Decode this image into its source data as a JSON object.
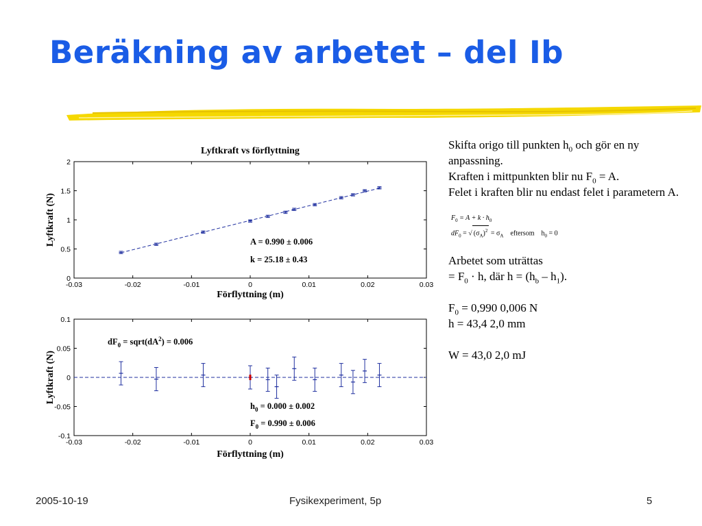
{
  "slide": {
    "title": "Beräkning av arbetet – del Ib",
    "accent_color": "#1a5ce6",
    "rule_color": "#f5d800"
  },
  "charts_text": {
    "top_title": "Lyftkraft vs förflyttning",
    "top_xlabel": "Förflyttning (m)",
    "top_ylabel": "Lyftkraft (N)",
    "top_ann_A": "A = 0.990 ± 0.006",
    "top_ann_k": "k = 25.18 ± 0.43",
    "bottom_xlabel": "Förflyttning (m)",
    "bottom_ylabel": "Lyftkraft (N)",
    "bottom_ann_dF_pre": "dF",
    "bottom_ann_dF_sub": "0",
    "bottom_ann_dF_mid": " = sqrt(dA",
    "bottom_ann_dF_sup": "2",
    "bottom_ann_dF_post": ") = 0.006",
    "bottom_ann_h_pre": "h",
    "bottom_ann_h_sub": "0",
    "bottom_ann_h_post": " = 0.000 ± 0.002",
    "bottom_ann_F_pre": "F",
    "bottom_ann_F_sub": "0",
    "bottom_ann_F_post": " = 0.990 ± 0.006"
  },
  "chart_data": [
    {
      "type": "scatter",
      "title": "Lyftkraft vs förflyttning",
      "xlabel": "Förflyttning (m)",
      "ylabel": "Lyftkraft (N)",
      "xlim": [
        -0.03,
        0.03
      ],
      "ylim": [
        0,
        2
      ],
      "xticks": [
        "-0.03",
        "-0.02",
        "-0.01",
        "0",
        "0.01",
        "0.02",
        "0.03"
      ],
      "yticks": [
        "0",
        "0.5",
        "1",
        "1.5",
        "2"
      ],
      "grid": false,
      "series": [
        {
          "x": [
            -0.022,
            -0.016,
            -0.008,
            0.0,
            0.003,
            0.006,
            0.0075,
            0.011,
            0.0155,
            0.0175,
            0.0195,
            0.022
          ],
          "y": [
            0.44,
            0.58,
            0.79,
            0.98,
            1.06,
            1.13,
            1.18,
            1.26,
            1.38,
            1.43,
            1.5,
            1.55
          ],
          "yerr": 0.02,
          "color": "#1f2f9f"
        }
      ],
      "fit_line": {
        "x": [
          -0.022,
          0.022
        ],
        "y": [
          0.436,
          1.544
        ],
        "style": "dashed",
        "color": "#1f2f9f"
      },
      "annotations": [
        "A = 0.990 ± 0.006",
        "k = 25.18 ± 0.43"
      ]
    },
    {
      "type": "scatter",
      "xlabel": "Förflyttning (m)",
      "ylabel": "Lyftkraft (N)",
      "xlim": [
        -0.03,
        0.03
      ],
      "ylim": [
        -0.1,
        0.1
      ],
      "xticks": [
        "-0.03",
        "-0.02",
        "-0.01",
        "0",
        "0.01",
        "0.02",
        "0.03"
      ],
      "yticks": [
        "-0.1",
        "-0.05",
        "0",
        "0.05",
        "0.1"
      ],
      "grid": false,
      "series": [
        {
          "x": [
            -0.022,
            -0.016,
            -0.008,
            0.0,
            0.003,
            0.0045,
            0.0075,
            0.011,
            0.0155,
            0.0175,
            0.0195,
            0.022
          ],
          "y": [
            0.007,
            -0.003,
            0.004,
            0.0,
            -0.004,
            -0.016,
            0.015,
            -0.004,
            0.004,
            -0.008,
            0.011,
            0.004
          ],
          "yerr": 0.02,
          "color": "#1f2f9f"
        }
      ],
      "highlight_point": {
        "x": 0.0,
        "y": 0.0,
        "color": "#cc0000"
      },
      "zero_line": {
        "y": 0,
        "style": "dashed",
        "color": "#1f2f9f"
      },
      "annotations": [
        "dF0 = sqrt(dA2) = 0.006",
        "h0 = 0.000 ± 0.002",
        "F0 = 0.990 ± 0.006"
      ]
    }
  ],
  "text_panel": {
    "p1_a": "Skifta origo till punkten h",
    "p1_sub": "0",
    "p1_b": " och gör en ny anpassning.",
    "p2_a": "Kraften i mittpunkten blir nu F",
    "p2_sub": "0",
    "p2_b": " = A.",
    "p3": "Felet i kraften blir nu endast felet i parametern A.",
    "f1_F": "F",
    "f1_sub": "0",
    "f1_rest": " = A + k · h",
    "f1_sub2": "0",
    "f2_dF": "dF",
    "f2_sub": "0",
    "f2_eq": " = ",
    "f2_sqrt": "(σ",
    "f2_sqrt_sub": "A",
    "f2_sqrt_close": ")",
    "f2_sup": "2",
    "f2_rhs": " = σ",
    "f2_rhs_sub": "A",
    "f2_eftersom": "eftersom",
    "f2_h": "h",
    "f2_h_sub": "0",
    "f2_h_rhs": " = 0",
    "p4": "Arbetet som uträttas",
    "p5_a": "= F",
    "p5_sub": "0",
    "p5_b": " ·  h, där  h = (h",
    "p5_sub_b": "b",
    "p5_c": " – h",
    "p5_sub_1": "1",
    "p5_d": ").",
    "p6_a": "F",
    "p6_sub": "0",
    "p6_b": " = 0,990  0,006 N",
    "p7": " h = 43,4  2,0 mm",
    "p8": "W = 43,0  2,0 mJ"
  },
  "footer": {
    "date": "2005-10-19",
    "course": "Fysikexperiment, 5p",
    "page": "5"
  }
}
